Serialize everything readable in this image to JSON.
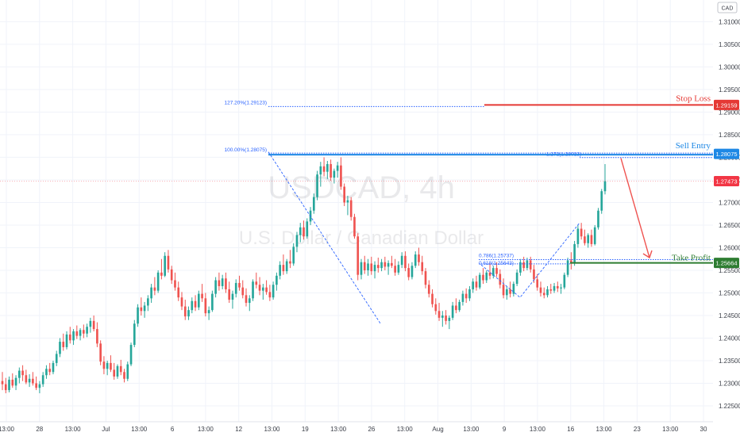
{
  "currency_badge": "CAD",
  "watermark": {
    "symbol": "USDCAD, 4h",
    "name": "U.S. Dollar / Canadian Dollar"
  },
  "colors": {
    "up": "#26a69a",
    "down": "#ef5350",
    "stop": "#e53935",
    "entry": "#1e88e5",
    "take": "#2e7d32",
    "fib": "#2962ff",
    "current": "#f23645",
    "arrow": "#ef5350",
    "zigzag": "#2962ff"
  },
  "levels": {
    "stop_loss": {
      "label": "Stop Loss",
      "price": 1.29159,
      "tag": "1.29159"
    },
    "sell_entry": {
      "label": "Sell Entry",
      "price": 1.28075,
      "tag": "1.28075"
    },
    "take_profit": {
      "label": "Take Profit",
      "price": 1.25664,
      "tag": "1.25664"
    },
    "current": {
      "price": 1.27473,
      "tag": "1.27473"
    }
  },
  "fib_labels": {
    "f127": {
      "text": "127.20%(1.29123)",
      "price": 1.29123
    },
    "f100": {
      "text": "100.00%(1.28075)",
      "price": 1.28075
    },
    "f1272": {
      "text": "1.272(1.28013)",
      "price": 1.28013
    },
    "f0786": {
      "text": "0.786(1.25737)",
      "price": 1.25737
    },
    "f0618": {
      "text": "0.618(1.25643)",
      "price": 1.25643
    }
  },
  "chart_data": {
    "type": "candlestick",
    "symbol": "USDCAD",
    "timeframe": "4h",
    "y_axis": {
      "range": [
        1.2215,
        1.3148
      ],
      "ticks": [
        "1.31000",
        "1.30500",
        "1.30000",
        "1.29500",
        "1.29000",
        "1.28500",
        "1.28000",
        "1.27500",
        "1.27000",
        "1.26500",
        "1.26000",
        "1.25500",
        "1.25000",
        "1.24500",
        "1.24000",
        "1.23500",
        "1.23000",
        "1.22500"
      ]
    },
    "x_axis": {
      "ticks": [
        "13:00",
        "28",
        "13:00",
        "Jul",
        "13:00",
        "6",
        "13:00",
        "12",
        "13:00",
        "19",
        "13:00",
        "26",
        "13:00",
        "Aug",
        "13:00",
        "9",
        "13:00",
        "16",
        "13:00",
        "23",
        "13:00",
        "30"
      ]
    },
    "candles": [
      [
        1.2305,
        1.2325,
        1.2285,
        1.2298
      ],
      [
        1.2298,
        1.2312,
        1.2278,
        1.2285
      ],
      [
        1.2285,
        1.2315,
        1.228,
        1.2308
      ],
      [
        1.2308,
        1.2322,
        1.229,
        1.2295
      ],
      [
        1.2295,
        1.2318,
        1.2285,
        1.2312
      ],
      [
        1.2312,
        1.2335,
        1.23,
        1.2328
      ],
      [
        1.2328,
        1.234,
        1.2305,
        1.2318
      ],
      [
        1.2318,
        1.233,
        1.2298,
        1.2302
      ],
      [
        1.2302,
        1.232,
        1.2292,
        1.231
      ],
      [
        1.231,
        1.2325,
        1.2295,
        1.23
      ],
      [
        1.23,
        1.2315,
        1.2285,
        1.229
      ],
      [
        1.229,
        1.2305,
        1.2278,
        1.2298
      ],
      [
        1.2298,
        1.2325,
        1.2292,
        1.2318
      ],
      [
        1.2318,
        1.234,
        1.231,
        1.2332
      ],
      [
        1.2332,
        1.2345,
        1.2318,
        1.2325
      ],
      [
        1.2325,
        1.235,
        1.232,
        1.2345
      ],
      [
        1.2345,
        1.2372,
        1.2338,
        1.2365
      ],
      [
        1.2365,
        1.24,
        1.2358,
        1.2392
      ],
      [
        1.2392,
        1.241,
        1.2372,
        1.238
      ],
      [
        1.238,
        1.2415,
        1.2375,
        1.2408
      ],
      [
        1.2408,
        1.2425,
        1.2388,
        1.2395
      ],
      [
        1.2395,
        1.242,
        1.2385,
        1.2415
      ],
      [
        1.2415,
        1.2428,
        1.2398,
        1.2405
      ],
      [
        1.2405,
        1.2422,
        1.2395,
        1.2418
      ],
      [
        1.2418,
        1.243,
        1.24,
        1.241
      ],
      [
        1.241,
        1.2432,
        1.2402,
        1.2425
      ],
      [
        1.2425,
        1.2445,
        1.2412,
        1.2438
      ],
      [
        1.2438,
        1.245,
        1.2415,
        1.242
      ],
      [
        1.242,
        1.2435,
        1.238,
        1.2388
      ],
      [
        1.2388,
        1.2395,
        1.234,
        1.2348
      ],
      [
        1.2348,
        1.236,
        1.232,
        1.2332
      ],
      [
        1.2332,
        1.235,
        1.2318,
        1.2345
      ],
      [
        1.2345,
        1.2362,
        1.2325,
        1.233
      ],
      [
        1.233,
        1.2345,
        1.2308,
        1.2315
      ],
      [
        1.2315,
        1.2342,
        1.231,
        1.2338
      ],
      [
        1.2338,
        1.2352,
        1.2318,
        1.2325
      ],
      [
        1.2325,
        1.2332,
        1.2302,
        1.231
      ],
      [
        1.231,
        1.2348,
        1.2305,
        1.2342
      ],
      [
        1.2342,
        1.239,
        1.2338,
        1.2385
      ],
      [
        1.2385,
        1.244,
        1.238,
        1.2432
      ],
      [
        1.2432,
        1.2475,
        1.2425,
        1.2468
      ],
      [
        1.2468,
        1.249,
        1.245,
        1.246
      ],
      [
        1.246,
        1.248,
        1.2445,
        1.2472
      ],
      [
        1.2472,
        1.2495,
        1.246,
        1.2488
      ],
      [
        1.2488,
        1.252,
        1.2478,
        1.2512
      ],
      [
        1.2512,
        1.2535,
        1.2495,
        1.2505
      ],
      [
        1.2505,
        1.255,
        1.25,
        1.2545
      ],
      [
        1.2545,
        1.2575,
        1.253,
        1.2538
      ],
      [
        1.2538,
        1.259,
        1.2535,
        1.2582
      ],
      [
        1.2582,
        1.2595,
        1.2545,
        1.2552
      ],
      [
        1.2552,
        1.256,
        1.252,
        1.2528
      ],
      [
        1.2528,
        1.2545,
        1.2505,
        1.2512
      ],
      [
        1.2512,
        1.2525,
        1.2482,
        1.249
      ],
      [
        1.249,
        1.2502,
        1.2462,
        1.247
      ],
      [
        1.247,
        1.2485,
        1.244,
        1.2448
      ],
      [
        1.2448,
        1.247,
        1.244,
        1.2462
      ],
      [
        1.2462,
        1.249,
        1.2455,
        1.2482
      ],
      [
        1.2482,
        1.2495,
        1.246,
        1.2468
      ],
      [
        1.2468,
        1.2505,
        1.2462,
        1.2498
      ],
      [
        1.2498,
        1.252,
        1.248,
        1.2488
      ],
      [
        1.2488,
        1.25,
        1.2448,
        1.2455
      ],
      [
        1.2455,
        1.247,
        1.244,
        1.2462
      ],
      [
        1.2462,
        1.2505,
        1.2458,
        1.2498
      ],
      [
        1.2498,
        1.2535,
        1.249,
        1.2528
      ],
      [
        1.2528,
        1.2545,
        1.2505,
        1.2515
      ],
      [
        1.2515,
        1.254,
        1.2508,
        1.2532
      ],
      [
        1.2532,
        1.2545,
        1.25,
        1.2508
      ],
      [
        1.2508,
        1.2525,
        1.2478,
        1.2485
      ],
      [
        1.2485,
        1.2505,
        1.2465,
        1.2498
      ],
      [
        1.2498,
        1.253,
        1.249,
        1.2522
      ],
      [
        1.2522,
        1.2538,
        1.2505,
        1.2512
      ],
      [
        1.2512,
        1.2528,
        1.2488,
        1.2495
      ],
      [
        1.2495,
        1.251,
        1.247,
        1.2478
      ],
      [
        1.2478,
        1.2495,
        1.246,
        1.2488
      ],
      [
        1.2488,
        1.253,
        1.2482,
        1.2525
      ],
      [
        1.2525,
        1.2545,
        1.251,
        1.2518
      ],
      [
        1.2518,
        1.2535,
        1.2495,
        1.2505
      ],
      [
        1.2505,
        1.252,
        1.2485,
        1.2512
      ],
      [
        1.2512,
        1.2528,
        1.2496,
        1.2502
      ],
      [
        1.2502,
        1.2518,
        1.2482,
        1.249
      ],
      [
        1.249,
        1.2525,
        1.2485,
        1.2518
      ],
      [
        1.2518,
        1.2545,
        1.2505,
        1.2538
      ],
      [
        1.2538,
        1.257,
        1.253,
        1.2562
      ],
      [
        1.2562,
        1.2585,
        1.254,
        1.2548
      ],
      [
        1.2548,
        1.2575,
        1.2542,
        1.257
      ],
      [
        1.257,
        1.2595,
        1.2555,
        1.2565
      ],
      [
        1.2565,
        1.261,
        1.256,
        1.2602
      ],
      [
        1.2602,
        1.2635,
        1.259,
        1.2628
      ],
      [
        1.2628,
        1.2655,
        1.2612,
        1.2645
      ],
      [
        1.2645,
        1.266,
        1.2618,
        1.2625
      ],
      [
        1.2625,
        1.2665,
        1.262,
        1.2658
      ],
      [
        1.2658,
        1.269,
        1.265,
        1.2682
      ],
      [
        1.2682,
        1.272,
        1.2675,
        1.2712
      ],
      [
        1.2712,
        1.277,
        1.2705,
        1.2762
      ],
      [
        1.2762,
        1.279,
        1.2735,
        1.278
      ],
      [
        1.278,
        1.28,
        1.2758,
        1.2768
      ],
      [
        1.2768,
        1.2792,
        1.2752,
        1.2785
      ],
      [
        1.2785,
        1.2795,
        1.2748,
        1.2755
      ],
      [
        1.2755,
        1.2775,
        1.2742,
        1.277
      ],
      [
        1.277,
        1.279,
        1.2755,
        1.2782
      ],
      [
        1.2782,
        1.28,
        1.2728,
        1.2735
      ],
      [
        1.2735,
        1.2742,
        1.2692,
        1.27
      ],
      [
        1.27,
        1.2715,
        1.2672,
        1.2705
      ],
      [
        1.2705,
        1.2712,
        1.266,
        1.2668
      ],
      [
        1.2668,
        1.2675,
        1.262,
        1.2625
      ],
      [
        1.2625,
        1.2632,
        1.2528,
        1.254
      ],
      [
        1.254,
        1.2575,
        1.253,
        1.2568
      ],
      [
        1.2568,
        1.2582,
        1.2542,
        1.255
      ],
      [
        1.255,
        1.2575,
        1.2538,
        1.2565
      ],
      [
        1.2565,
        1.258,
        1.254,
        1.2548
      ],
      [
        1.2548,
        1.257,
        1.2532,
        1.2562
      ],
      [
        1.2562,
        1.2578,
        1.2545,
        1.2555
      ],
      [
        1.2555,
        1.2575,
        1.2548,
        1.2568
      ],
      [
        1.2568,
        1.258,
        1.255,
        1.2558
      ],
      [
        1.2558,
        1.2572,
        1.254,
        1.2566
      ],
      [
        1.2566,
        1.2582,
        1.2555,
        1.256
      ],
      [
        1.256,
        1.2575,
        1.2538,
        1.2545
      ],
      [
        1.2545,
        1.257,
        1.254,
        1.2562
      ],
      [
        1.2562,
        1.259,
        1.2555,
        1.2582
      ],
      [
        1.2582,
        1.2592,
        1.2548,
        1.2555
      ],
      [
        1.2555,
        1.2565,
        1.2528,
        1.2535
      ],
      [
        1.2535,
        1.2568,
        1.253,
        1.256
      ],
      [
        1.256,
        1.2592,
        1.2555,
        1.2585
      ],
      [
        1.2585,
        1.26,
        1.256,
        1.2568
      ],
      [
        1.2568,
        1.2582,
        1.254,
        1.2548
      ],
      [
        1.2548,
        1.2555,
        1.251,
        1.2518
      ],
      [
        1.2518,
        1.2528,
        1.249,
        1.2498
      ],
      [
        1.2498,
        1.2508,
        1.2468,
        1.2475
      ],
      [
        1.2475,
        1.2488,
        1.2452,
        1.246
      ],
      [
        1.246,
        1.2478,
        1.2438,
        1.2445
      ],
      [
        1.2445,
        1.246,
        1.2425,
        1.245
      ],
      [
        1.245,
        1.2462,
        1.243,
        1.2438
      ],
      [
        1.2438,
        1.245,
        1.242,
        1.2445
      ],
      [
        1.2445,
        1.248,
        1.244,
        1.2472
      ],
      [
        1.2472,
        1.2488,
        1.2455,
        1.2462
      ],
      [
        1.2462,
        1.2485,
        1.2458,
        1.248
      ],
      [
        1.248,
        1.2505,
        1.2472,
        1.2498
      ],
      [
        1.2498,
        1.251,
        1.2478,
        1.2488
      ],
      [
        1.2488,
        1.2515,
        1.2482,
        1.2508
      ],
      [
        1.2508,
        1.2532,
        1.25,
        1.2525
      ],
      [
        1.2525,
        1.2538,
        1.2505,
        1.2512
      ],
      [
        1.2512,
        1.2545,
        1.2508,
        1.254
      ],
      [
        1.254,
        1.2555,
        1.252,
        1.2528
      ],
      [
        1.2528,
        1.255,
        1.2522,
        1.2545
      ],
      [
        1.2545,
        1.2565,
        1.253,
        1.2538
      ],
      [
        1.2538,
        1.256,
        1.2532,
        1.2555
      ],
      [
        1.2555,
        1.2568,
        1.2535,
        1.2542
      ],
      [
        1.2542,
        1.2552,
        1.251,
        1.2518
      ],
      [
        1.2518,
        1.2532,
        1.2488,
        1.2495
      ],
      [
        1.2495,
        1.2515,
        1.2485,
        1.2508
      ],
      [
        1.2508,
        1.2525,
        1.249,
        1.2498
      ],
      [
        1.2498,
        1.2525,
        1.2492,
        1.252
      ],
      [
        1.252,
        1.2552,
        1.2515,
        1.2545
      ],
      [
        1.2545,
        1.2575,
        1.2538,
        1.2568
      ],
      [
        1.2568,
        1.258,
        1.2548,
        1.2555
      ],
      [
        1.2555,
        1.2578,
        1.255,
        1.2572
      ],
      [
        1.2572,
        1.258,
        1.2545,
        1.2552
      ],
      [
        1.2552,
        1.2562,
        1.2522,
        1.253
      ],
      [
        1.253,
        1.2542,
        1.2505,
        1.2512
      ],
      [
        1.2512,
        1.2525,
        1.2492,
        1.25
      ],
      [
        1.25,
        1.2512,
        1.2488,
        1.2495
      ],
      [
        1.2495,
        1.2515,
        1.249,
        1.2508
      ],
      [
        1.2508,
        1.252,
        1.2498,
        1.2505
      ],
      [
        1.2505,
        1.2522,
        1.25,
        1.2515
      ],
      [
        1.2515,
        1.2525,
        1.2502,
        1.251
      ],
      [
        1.251,
        1.252,
        1.2498,
        1.2512
      ],
      [
        1.2512,
        1.2545,
        1.2508,
        1.254
      ],
      [
        1.254,
        1.2578,
        1.2535,
        1.2572
      ],
      [
        1.2572,
        1.259,
        1.2552,
        1.2565
      ],
      [
        1.2565,
        1.2615,
        1.256,
        1.2608
      ],
      [
        1.2608,
        1.265,
        1.26,
        1.2642
      ],
      [
        1.2642,
        1.2655,
        1.2618,
        1.2625
      ],
      [
        1.2625,
        1.264,
        1.2605,
        1.261
      ],
      [
        1.261,
        1.2632,
        1.26,
        1.2628
      ],
      [
        1.2628,
        1.264,
        1.2602,
        1.2608
      ],
      [
        1.2608,
        1.265,
        1.2605,
        1.2645
      ],
      [
        1.2645,
        1.2688,
        1.264,
        1.2682
      ],
      [
        1.2682,
        1.273,
        1.2675,
        1.2725
      ],
      [
        1.2725,
        1.2785,
        1.2718,
        1.2747
      ]
    ]
  }
}
